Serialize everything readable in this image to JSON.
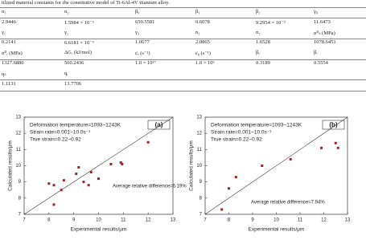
{
  "caption": "tilized material constants for the constitutive model of Ti-6Al-4V titanium alloy.",
  "table": {
    "rows": [
      [
        "α₁",
        "α₂",
        "β₀",
        "β₁",
        "β₂",
        "γ₀"
      ],
      [
        "2.9446",
        "1.5984 × 10⁻⁶",
        "659.5581",
        "0.6078",
        "9.2954 × 10⁻³",
        "11.6473"
      ],
      [
        "γ₁",
        "γ₂",
        "γ₃",
        "n₁",
        "n₂",
        "σ⁰ₛ (MPa)"
      ],
      [
        "0.2141",
        "6.6181 × 10⁻⁶",
        "1.0677",
        "2.0865",
        "1.6528",
        "1078.6451"
      ],
      [
        "σ⁰ᵣ (MPa)",
        "ΔGᵣ (kJ/mol)",
        "ε̇ₓ (s⁻¹)",
        "ε̇₀ (s⁻¹)",
        "βₑ",
        "βᵣ"
      ],
      [
        "1327.6880",
        "560.2436",
        "1.0 × 10¹⁷",
        "1.0 × 10⁵",
        "0.3189",
        "0.5554"
      ],
      [
        "qₛ",
        "qᵣ"
      ],
      [
        "1.1131",
        "13.7706"
      ]
    ]
  },
  "chart_data": [
    {
      "type": "scatter",
      "panel_label": "(a)",
      "color": "#b01c1c",
      "annotations": [
        "Deformation temperature=1093~1243K",
        "Strain rate=0.001~10.0s⁻¹",
        "True strain=0.22~0.92"
      ],
      "note": "Average relative difference=6.19%",
      "x_label": "Experimental results/μm",
      "y_label": "Calculated results/μm",
      "x": [
        8.0,
        8.2,
        8.2,
        8.5,
        8.6,
        9.1,
        9.2,
        9.4,
        9.6,
        9.7,
        10.0,
        10.5,
        10.9,
        10.95,
        12.0
      ],
      "values": [
        8.9,
        8.8,
        7.6,
        8.5,
        9.1,
        9.5,
        9.9,
        9.0,
        8.8,
        9.6,
        9.2,
        10.1,
        10.2,
        10.1,
        11.45
      ],
      "xlim": [
        7,
        13
      ],
      "ylim": [
        7,
        13
      ],
      "xticks": [
        7,
        8,
        9,
        10,
        11,
        12,
        13
      ],
      "yticks": [
        7,
        8,
        9,
        10,
        11,
        12,
        13
      ]
    },
    {
      "type": "scatter",
      "panel_label": "(b)",
      "color": "#b01c1c",
      "annotations": [
        "Deformation temperature=1093~1243K",
        "Strain rate=0.001~10.0s⁻¹",
        "True strain=0.22~0.92"
      ],
      "note": "Average relative difference=7.94%",
      "x_label": "Experimental results/μm",
      "y_label": "Calculated results/μm",
      "x": [
        7.7,
        8.0,
        8.3,
        9.4,
        10.6,
        11.9,
        12.5,
        12.6
      ],
      "values": [
        7.3,
        8.6,
        9.3,
        10.0,
        10.4,
        11.1,
        11.4,
        11.1
      ],
      "xlim": [
        7,
        13
      ],
      "ylim": [
        7,
        13
      ],
      "xticks": [
        7,
        8,
        9,
        10,
        11,
        12,
        13
      ],
      "yticks": [
        7,
        8,
        9,
        10,
        11,
        12,
        13
      ]
    }
  ]
}
